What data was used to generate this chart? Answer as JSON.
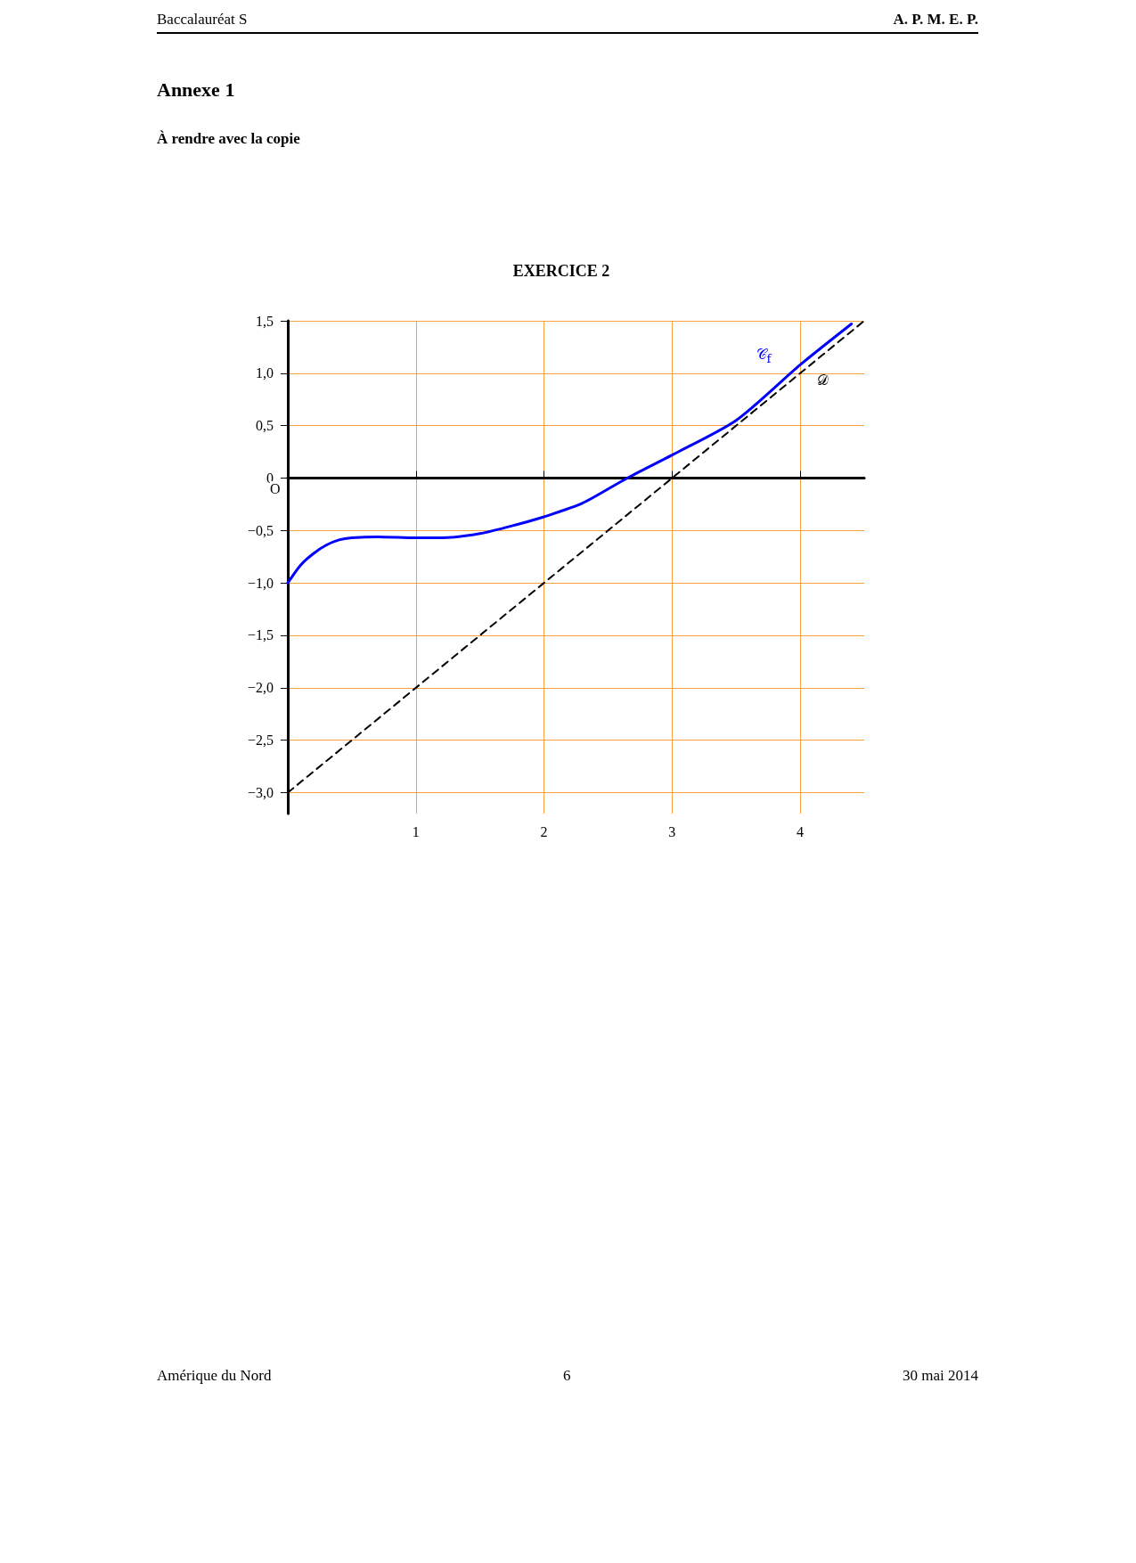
{
  "chart_data": {
    "type": "line",
    "title": "EXERCICE 2",
    "annotations": [
      "Baccalauréat S",
      "A. P. M. E. P.",
      "Annexe 1",
      "À rendre avec la copie",
      "Amérique du Nord",
      "6",
      "30 mai 2014",
      "O"
    ],
    "series": [
      {
        "name": "𝒞$_{f}$",
        "color": "#0000ff",
        "x": [
          0,
          0.1,
          0.2,
          0.3,
          0.4,
          0.5,
          0.7,
          1,
          1.2,
          1.5,
          1.8,
          2,
          2.3,
          2.65,
          3,
          3.5,
          4,
          4.4
        ],
        "values": [
          -1,
          -0.83,
          -0.72,
          -0.64,
          -0.59,
          -0.57,
          -0.56,
          -0.57,
          -0.57,
          -0.53,
          -0.44,
          -0.37,
          -0.24,
          0,
          0.22,
          0.55,
          1.08,
          1.47
        ],
        "line_style": "solid"
      },
      {
        "name": "𝒟",
        "color": "#000000",
        "x": [
          0,
          4.5
        ],
        "values": [
          -3,
          1.5
        ],
        "line_style": "dashed"
      }
    ],
    "xlim": [
      0,
      4.5
    ],
    "xticks": [
      1,
      2,
      3,
      4
    ],
    "ylim": [
      -3.2,
      1.5
    ],
    "yticks": [
      {
        "value": 1.5,
        "label": "1,5"
      },
      {
        "value": 1,
        "label": "1,0"
      },
      {
        "value": 0.5,
        "label": "0,5"
      },
      0,
      {
        "value": -0.5,
        "label": "−0,5"
      },
      {
        "value": -1,
        "label": "−1,0"
      },
      {
        "value": -1.5,
        "label": "−1,5"
      },
      {
        "value": -2,
        "label": "−2,0"
      },
      {
        "value": -2.5,
        "label": "−2,5"
      },
      {
        "value": -3,
        "label": "−3,0"
      }
    ],
    "grid": true,
    "marker": "none"
  }
}
